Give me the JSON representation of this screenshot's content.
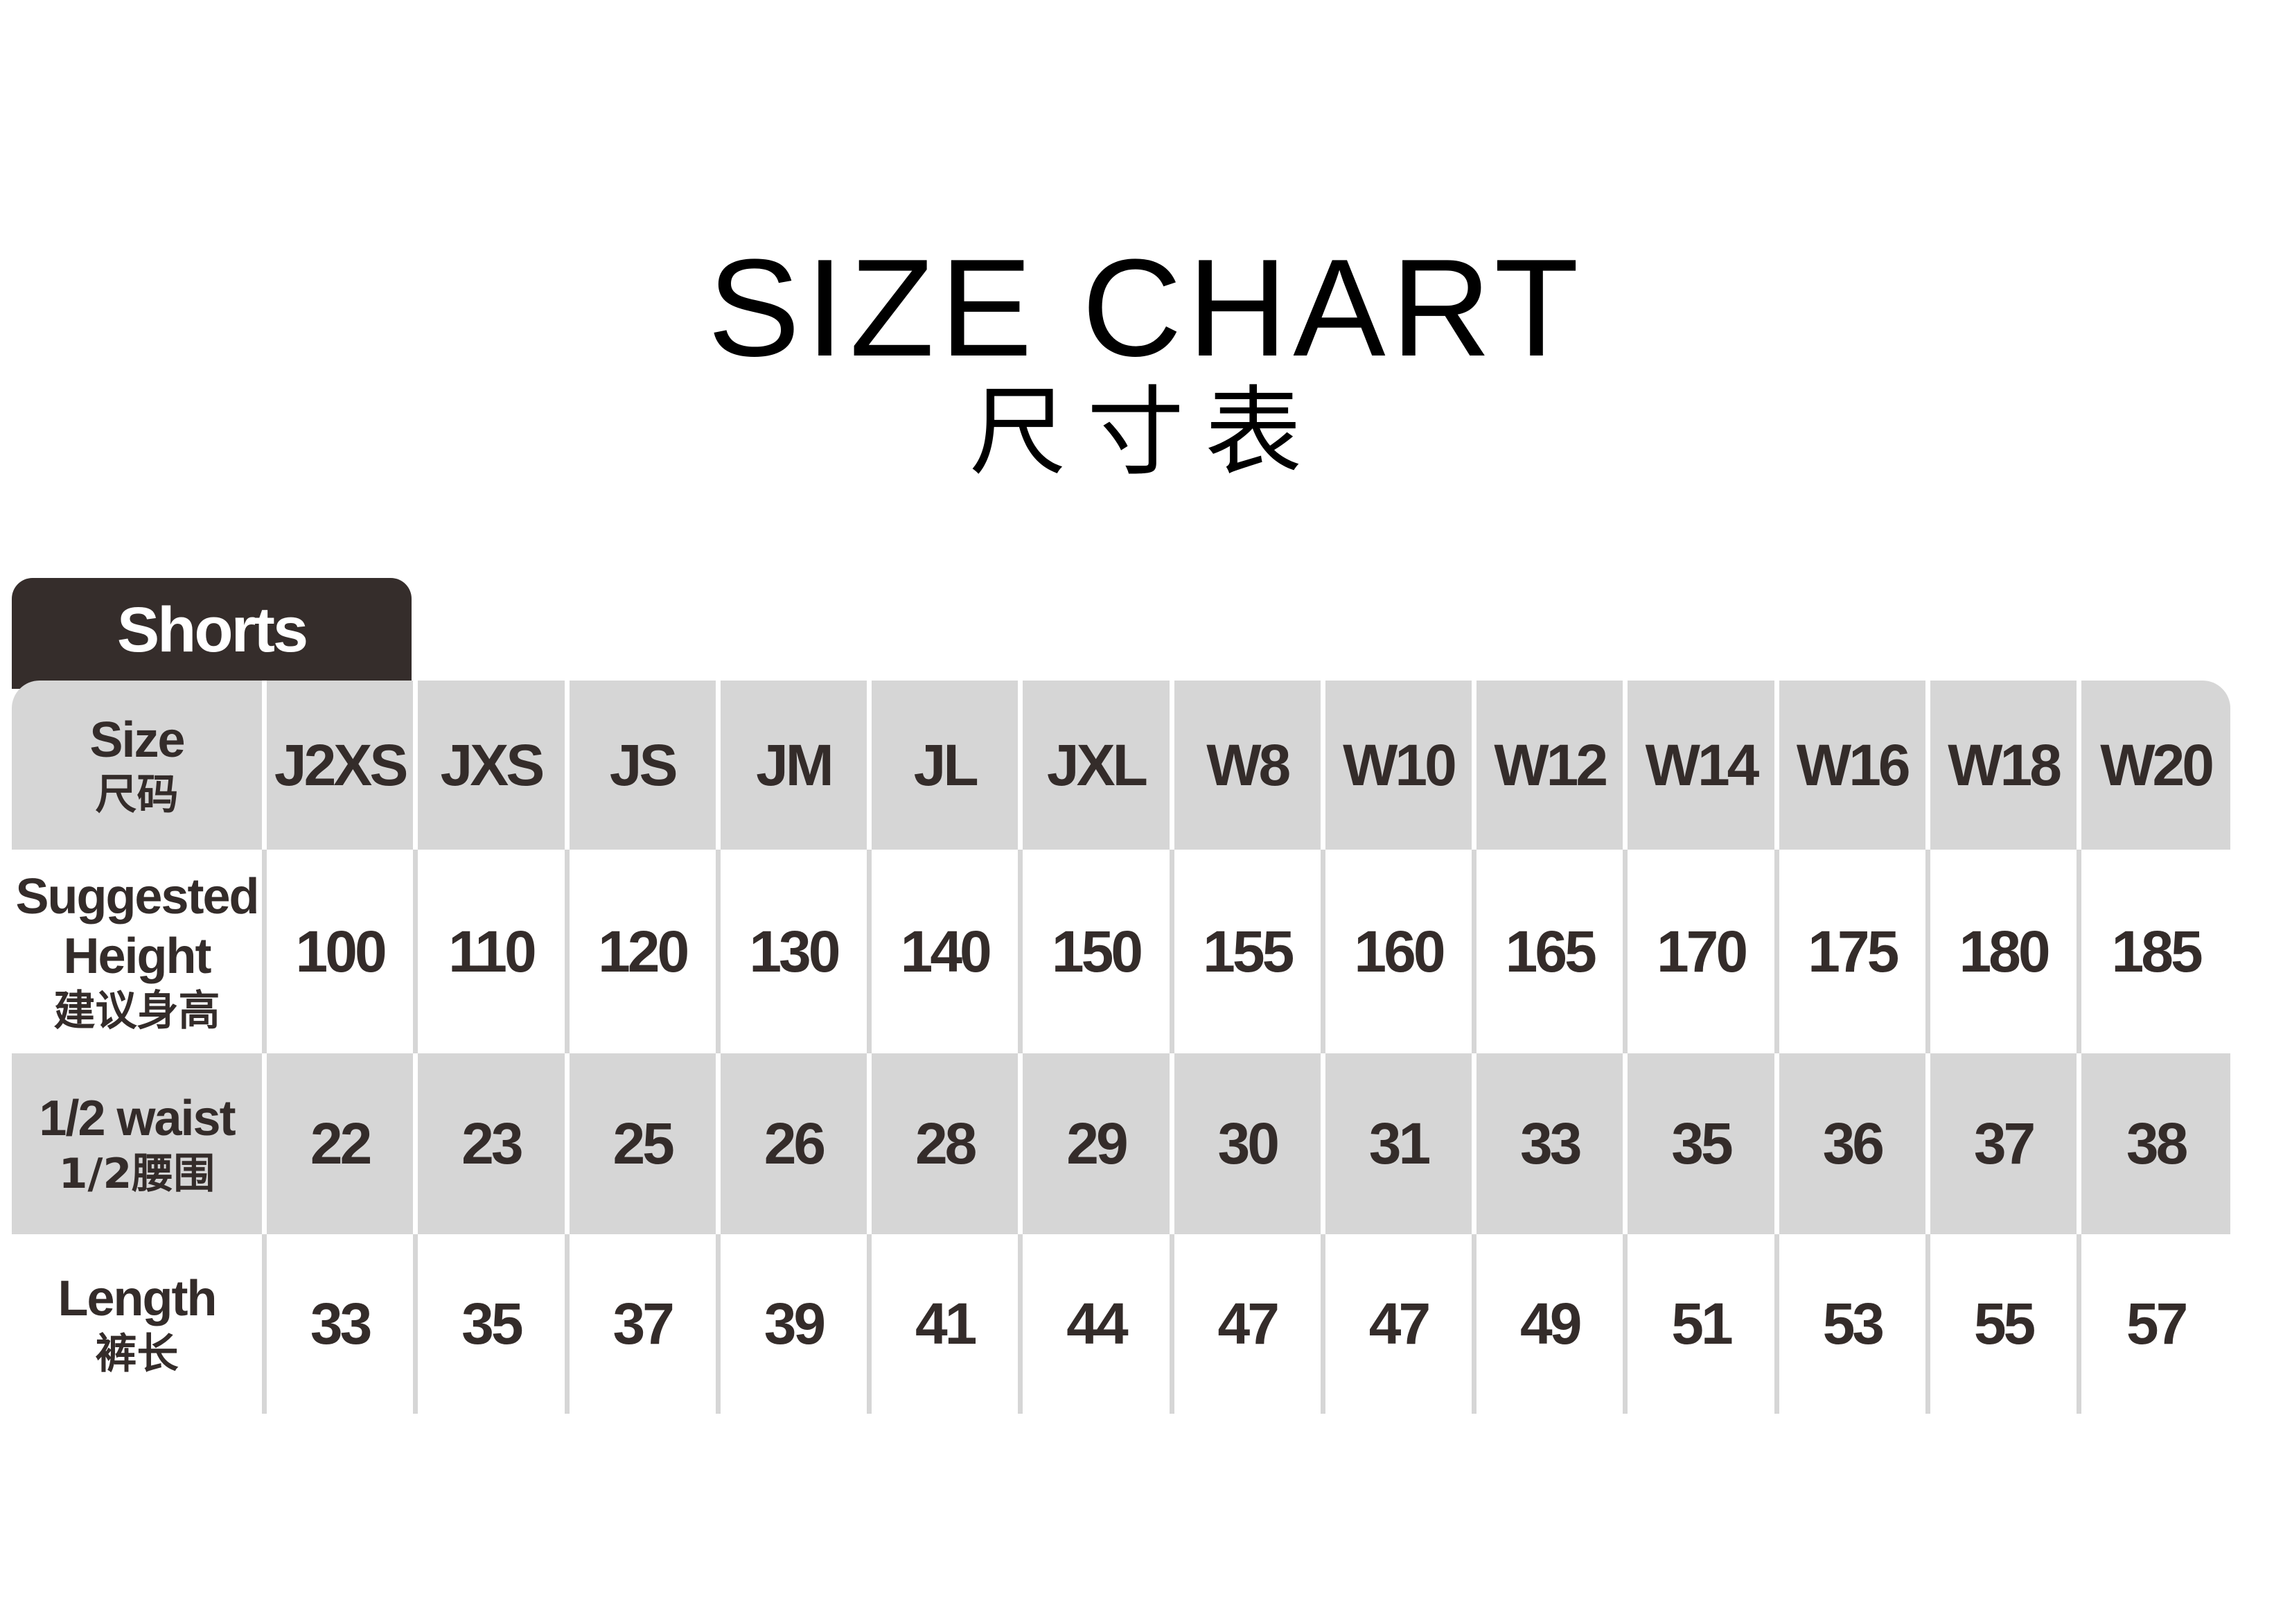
{
  "title": "SIZE CHART",
  "subtitle": "尺寸表",
  "category_tab": "Shorts",
  "colors": {
    "tab": "#352d2b",
    "text": "#342c2a",
    "row_shade": "#d6d6d6"
  },
  "table": {
    "columns": [
      "J2XS",
      "JXS",
      "JS",
      "JM",
      "JL",
      "JXL",
      "W8",
      "W10",
      "W12",
      "W14",
      "W16",
      "W18",
      "W20"
    ],
    "header_label": {
      "en": "Size",
      "cn": "尺码"
    },
    "rows": [
      {
        "label_en": [
          "Suggested",
          "Height"
        ],
        "label_cn": "建议身高",
        "values": [
          "100",
          "110",
          "120",
          "130",
          "140",
          "150",
          "155",
          "160",
          "165",
          "170",
          "175",
          "180",
          "185"
        ]
      },
      {
        "label_en": [
          "1/2 waist"
        ],
        "label_cn": "1/2腰围",
        "values": [
          "22",
          "23",
          "25",
          "26",
          "28",
          "29",
          "30",
          "31",
          "33",
          "35",
          "36",
          "37",
          "38"
        ]
      },
      {
        "label_en": [
          "Length"
        ],
        "label_cn": "裤长",
        "values": [
          "33",
          "35",
          "37",
          "39",
          "41",
          "44",
          "47",
          "47",
          "49",
          "51",
          "53",
          "55",
          "57"
        ]
      }
    ]
  }
}
